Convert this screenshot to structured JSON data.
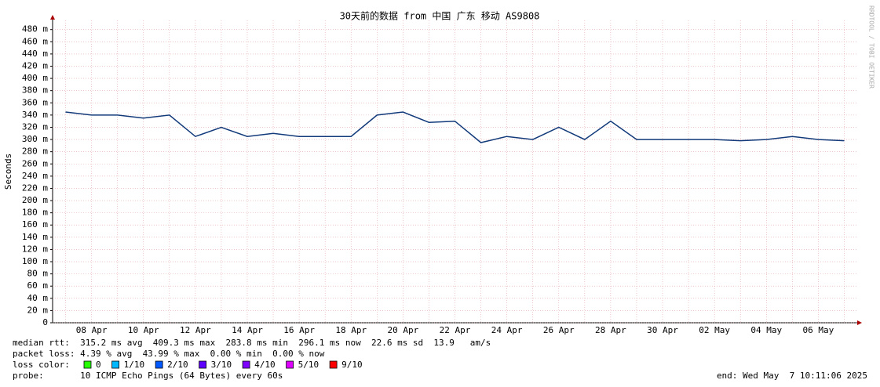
{
  "chart_data": {
    "type": "line",
    "title": "30天前的数据 from 中国 广东 移动 AS9808",
    "y_label": "Seconds",
    "side_label": "RRDTOOL / TOBI OETIKER",
    "categories": [
      null,
      "08 Apr",
      null,
      "10 Apr",
      null,
      "12 Apr",
      null,
      "14 Apr",
      null,
      "16 Apr",
      null,
      "18 Apr",
      null,
      "20 Apr",
      null,
      "22 Apr",
      null,
      "24 Apr",
      null,
      "26 Apr",
      null,
      "28 Apr",
      null,
      "30 Apr",
      null,
      "02 May",
      null,
      "04 May",
      null,
      "06 May",
      null
    ],
    "series": [
      {
        "name": "median rtt",
        "color": "#123a7a",
        "values": [
          345,
          340,
          340,
          335,
          340,
          305,
          320,
          305,
          310,
          305,
          305,
          305,
          340,
          345,
          328,
          330,
          295,
          305,
          300,
          320,
          300,
          330,
          300,
          300,
          300,
          300,
          298,
          300,
          305,
          300,
          298
        ]
      }
    ],
    "ylim": [
      0,
      495
    ],
    "yticks": [
      0,
      {
        "value": 20,
        "label": "20 m"
      },
      {
        "value": 40,
        "label": "40 m"
      },
      {
        "value": 60,
        "label": "60 m"
      },
      {
        "value": 80,
        "label": "80 m"
      },
      {
        "value": 100,
        "label": "100 m"
      },
      {
        "value": 120,
        "label": "120 m"
      },
      {
        "value": 140,
        "label": "140 m"
      },
      {
        "value": 160,
        "label": "160 m"
      },
      {
        "value": 180,
        "label": "180 m"
      },
      {
        "value": 200,
        "label": "200 m"
      },
      {
        "value": 220,
        "label": "220 m"
      },
      {
        "value": 240,
        "label": "240 m"
      },
      {
        "value": 260,
        "label": "260 m"
      },
      {
        "value": 280,
        "label": "280 m"
      },
      {
        "value": 300,
        "label": "300 m"
      },
      {
        "value": 320,
        "label": "320 m"
      },
      {
        "value": 340,
        "label": "340 m"
      },
      {
        "value": 360,
        "label": "360 m"
      },
      {
        "value": 380,
        "label": "380 m"
      },
      {
        "value": 400,
        "label": "400 m"
      },
      {
        "value": 420,
        "label": "420 m"
      },
      {
        "value": 440,
        "label": "440 m"
      },
      {
        "value": 460,
        "label": "460 m"
      },
      {
        "value": 480,
        "label": "480 m"
      }
    ],
    "grid": true
  },
  "footer": {
    "median": "median rtt:  315.2 ms avg  409.3 ms max  283.8 ms min  296.1 ms now  22.6 ms sd  13.9   am/s",
    "loss": "packet loss: 4.39 % avg  43.99 % max  0.00 % min  0.00 % now",
    "loss_label": "loss color:",
    "loss_colors": [
      {
        "name": "0",
        "color": "#26ff00"
      },
      {
        "name": "1/10",
        "color": "#00b8ff"
      },
      {
        "name": "2/10",
        "color": "#0059ff"
      },
      {
        "name": "3/10",
        "color": "#5e00ff"
      },
      {
        "name": "4/10",
        "color": "#7e00ff"
      },
      {
        "name": "5/10",
        "color": "#dd00ff"
      },
      {
        "name": "9/10",
        "color": "#ff0000"
      }
    ],
    "probe": "probe:       10 ICMP Echo Pings (64 Bytes) every 60s",
    "end": "end: Wed May  7 10:11:06 2025"
  }
}
